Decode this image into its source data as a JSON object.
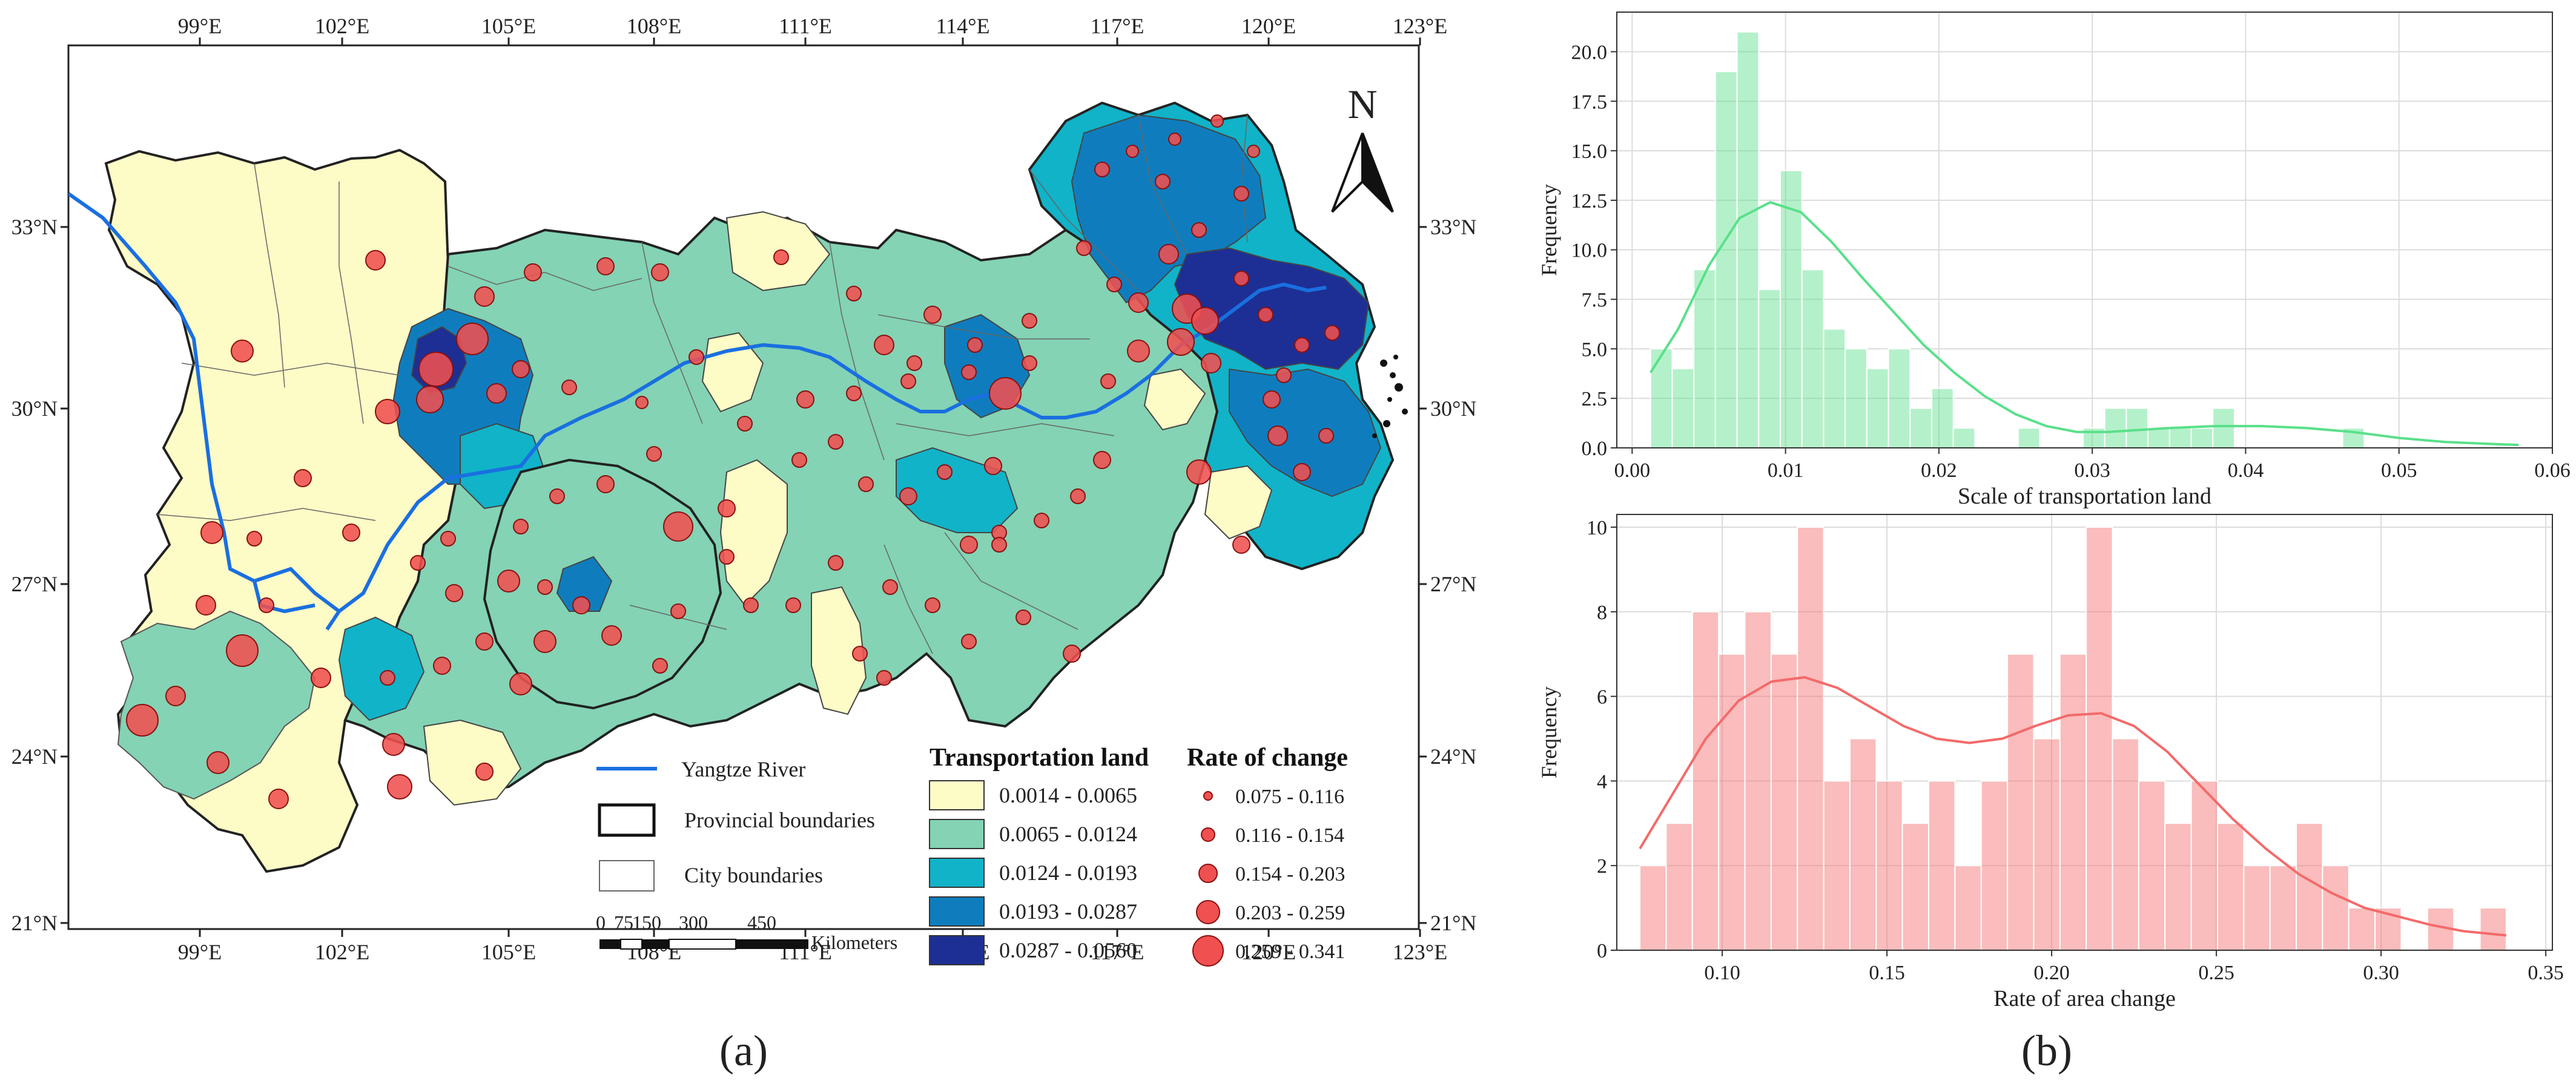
{
  "panel_labels": {
    "a": "(a)",
    "b": "(b)"
  },
  "map": {
    "north_label": "N",
    "lon_ticks": [
      "99°E",
      "102°E",
      "105°E",
      "108°E",
      "111°E",
      "114°E",
      "117°E",
      "120°E",
      "123°E"
    ],
    "lat_ticks": [
      "33°N",
      "30°N",
      "27°N",
      "24°N",
      "21°N"
    ],
    "legend": {
      "river": "Yangtze River",
      "provincial": "Provincial boundaries",
      "city": "City boundaries",
      "transport_title": "Transportation land",
      "transport_classes": [
        {
          "label": "0.0014 - 0.0065",
          "color": "#fdfbc6"
        },
        {
          "label": "0.0065 - 0.0124",
          "color": "#83d3b4"
        },
        {
          "label": "0.0124 - 0.0193",
          "color": "#11b3c8"
        },
        {
          "label": "0.0193 - 0.0287",
          "color": "#0f7dbd"
        },
        {
          "label": "0.0287 - 0.0560",
          "color": "#1d2f94"
        }
      ],
      "rate_title": "Rate of change",
      "rate_classes": [
        "0.075 - 0.116",
        "0.116 - 0.154",
        "0.154 - 0.203",
        "0.203 - 0.259",
        "0.259 - 0.341"
      ],
      "scale_ticks": [
        "0",
        "75",
        "150",
        "300",
        "450"
      ],
      "scale_unit": "Kilometers"
    },
    "colors": {
      "river": "#1a6fe0",
      "circle": "#f05050",
      "circle_stroke": "#8a1010"
    }
  },
  "chart_data": [
    {
      "type": "bar",
      "title": "",
      "xlabel": "Scale of transportation land",
      "ylabel": "Frequency",
      "xlim": [
        -0.001,
        0.06
      ],
      "ylim": [
        0,
        22
      ],
      "x_ticks": [
        "0.00",
        "0.01",
        "0.02",
        "0.03",
        "0.04",
        "0.05",
        "0.06"
      ],
      "y_ticks": [
        "0.0",
        "2.5",
        "5.0",
        "7.5",
        "10.0",
        "12.5",
        "15.0",
        "17.5",
        "20.0"
      ],
      "bin_start": 0.0012,
      "bin_width": 0.00141,
      "values": [
        5,
        4,
        9,
        19,
        21,
        8,
        14,
        9,
        6,
        5,
        4,
        5,
        2,
        3,
        1,
        0,
        0,
        1,
        0,
        0,
        1,
        2,
        2,
        1,
        1,
        1,
        2,
        0,
        0,
        0,
        0,
        0,
        1
      ],
      "kde": [
        [
          0.0012,
          3.8
        ],
        [
          0.003,
          6
        ],
        [
          0.005,
          9.2
        ],
        [
          0.007,
          11.6
        ],
        [
          0.009,
          12.4
        ],
        [
          0.011,
          11.9
        ],
        [
          0.013,
          10.4
        ],
        [
          0.015,
          8.6
        ],
        [
          0.017,
          6.9
        ],
        [
          0.019,
          5.2
        ],
        [
          0.021,
          3.8
        ],
        [
          0.023,
          2.6
        ],
        [
          0.025,
          1.7
        ],
        [
          0.027,
          1.1
        ],
        [
          0.029,
          0.8
        ],
        [
          0.031,
          0.8
        ],
        [
          0.033,
          0.9
        ],
        [
          0.035,
          1.0
        ],
        [
          0.038,
          1.1
        ],
        [
          0.041,
          1.1
        ],
        [
          0.044,
          1.0
        ],
        [
          0.047,
          0.8
        ],
        [
          0.05,
          0.5
        ],
        [
          0.053,
          0.3
        ],
        [
          0.056,
          0.2
        ],
        [
          0.0578,
          0.15
        ]
      ],
      "color": "#59e08a"
    },
    {
      "type": "bar",
      "title": "",
      "xlabel": "Rate of  area change",
      "ylabel": "Frequency",
      "xlim": [
        0.068,
        0.352
      ],
      "ylim": [
        0,
        10.3
      ],
      "x_ticks": [
        "0.10",
        "0.15",
        "0.20",
        "0.25",
        "0.30",
        "0.35"
      ],
      "y_ticks": [
        "0",
        "2",
        "4",
        "6",
        "8",
        "10"
      ],
      "bin_start": 0.075,
      "bin_width": 0.00797,
      "values": [
        2,
        3,
        8,
        7,
        8,
        7,
        10,
        4,
        5,
        4,
        3,
        4,
        2,
        4,
        7,
        5,
        7,
        10,
        5,
        4,
        3,
        4,
        3,
        2,
        2,
        3,
        2,
        1,
        1,
        0,
        1,
        0,
        1
      ],
      "kde": [
        [
          0.075,
          2.4
        ],
        [
          0.085,
          3.7
        ],
        [
          0.095,
          5.0
        ],
        [
          0.105,
          5.9
        ],
        [
          0.115,
          6.35
        ],
        [
          0.125,
          6.45
        ],
        [
          0.135,
          6.2
        ],
        [
          0.145,
          5.75
        ],
        [
          0.155,
          5.3
        ],
        [
          0.165,
          5.0
        ],
        [
          0.175,
          4.9
        ],
        [
          0.185,
          5.0
        ],
        [
          0.195,
          5.3
        ],
        [
          0.205,
          5.55
        ],
        [
          0.215,
          5.6
        ],
        [
          0.225,
          5.3
        ],
        [
          0.235,
          4.7
        ],
        [
          0.245,
          3.9
        ],
        [
          0.255,
          3.1
        ],
        [
          0.265,
          2.4
        ],
        [
          0.275,
          1.8
        ],
        [
          0.285,
          1.35
        ],
        [
          0.295,
          1.0
        ],
        [
          0.305,
          0.8
        ],
        [
          0.315,
          0.6
        ],
        [
          0.325,
          0.45
        ],
        [
          0.338,
          0.35
        ]
      ],
      "color": "#f46a6a"
    }
  ]
}
